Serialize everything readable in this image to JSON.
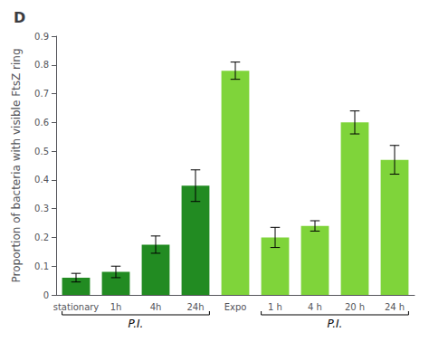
{
  "chart_data": {
    "type": "bar",
    "title": "D",
    "ylabel": "Proportion of bacteria with visible FtsZ ring",
    "categories": [
      "stationary",
      "1h",
      "4h",
      "24h",
      "Expo",
      "1 h",
      "4 h",
      "20 h",
      "24 h"
    ],
    "values": [
      0.06,
      0.08,
      0.175,
      0.38,
      0.78,
      0.2,
      0.24,
      0.6,
      0.47
    ],
    "errors": [
      0.015,
      0.02,
      0.03,
      0.055,
      0.03,
      0.035,
      0.018,
      0.04,
      0.05
    ],
    "colors": [
      "#228B22",
      "#228B22",
      "#228B22",
      "#228B22",
      "#7FD43A",
      "#7FD43A",
      "#7FD43A",
      "#7FD43A",
      "#7FD43A"
    ],
    "ylim": [
      0,
      0.9
    ],
    "yticks": [
      0,
      0.1,
      0.2,
      0.3,
      0.4,
      0.5,
      0.6,
      0.7,
      0.8,
      0.9
    ],
    "annotations": [
      {
        "text": "P.I.",
        "from": "stationary",
        "to": "24h"
      },
      {
        "text": "P.I.",
        "from": "1 h",
        "to": "24 h"
      }
    ],
    "grid": false
  }
}
